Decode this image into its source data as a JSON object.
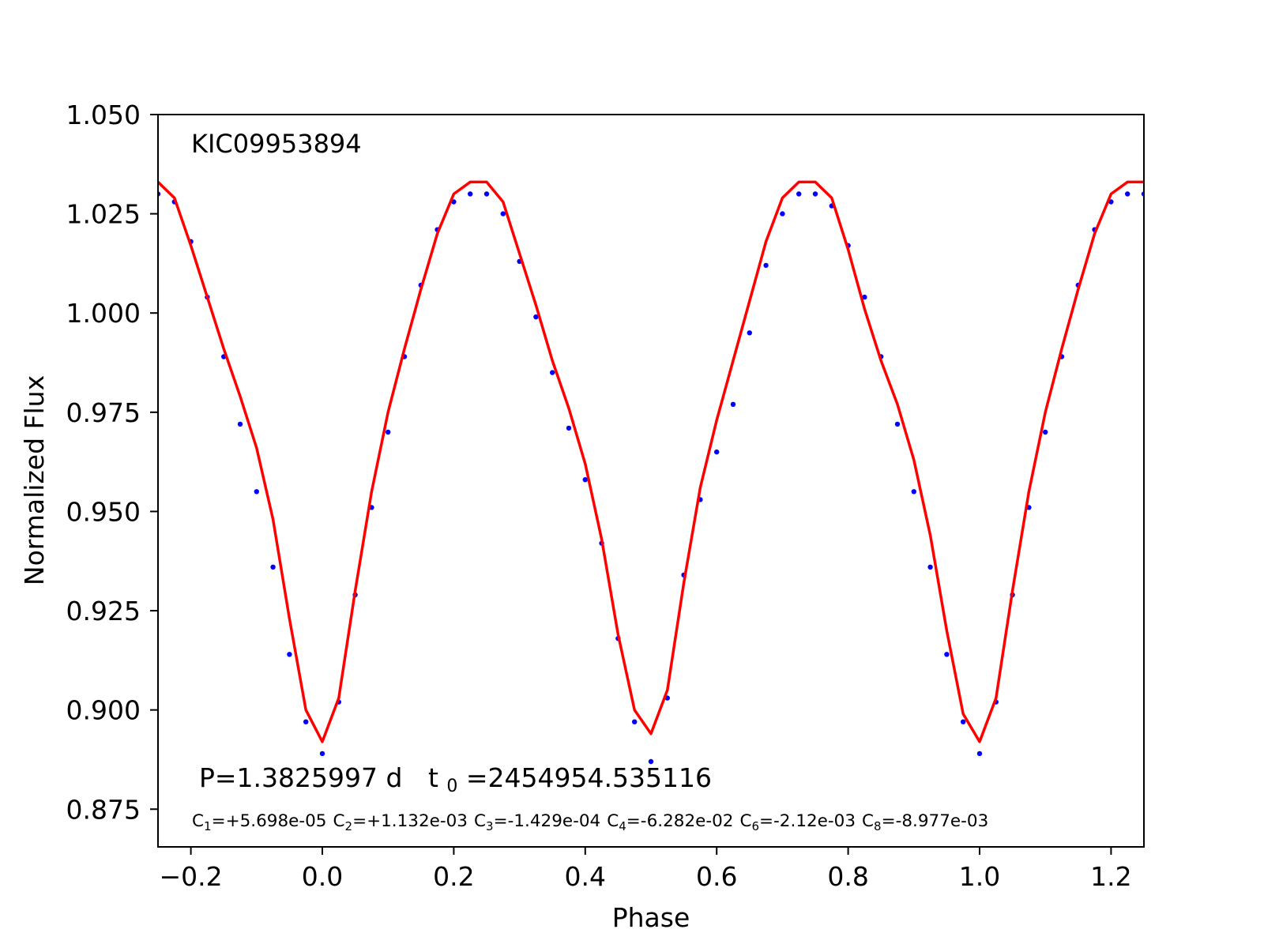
{
  "chart_data": {
    "type": "scatter",
    "object_label": "KIC09953894",
    "xlabel": "Phase",
    "ylabel": "Normalized Flux",
    "xlim": [
      -0.25,
      1.25
    ],
    "ylim": [
      0.8655,
      1.05
    ],
    "x_ticks": [
      -0.2,
      0.0,
      0.2,
      0.4,
      0.6,
      0.8,
      1.0,
      1.2
    ],
    "x_tick_labels": [
      "−0.2",
      "0.0",
      "0.2",
      "0.4",
      "0.6",
      "0.8",
      "1.0",
      "1.2"
    ],
    "y_ticks": [
      0.875,
      0.9,
      0.925,
      0.95,
      0.975,
      1.0,
      1.025,
      1.05
    ],
    "y_tick_labels": [
      "0.875",
      "0.900",
      "0.925",
      "0.950",
      "0.975",
      "1.000",
      "1.025",
      "1.050"
    ],
    "grid": false,
    "annotations": {
      "period_label": "P=1.3825997 d",
      "t0_prefix": "t",
      "t0_sub": "0",
      "t0_value": "=2454954.535116",
      "coefficients": [
        {
          "base": "C",
          "sub": "1",
          "value": "=+5.698e-05"
        },
        {
          "base": "C",
          "sub": "2",
          "value": "=+1.132e-03"
        },
        {
          "base": "C",
          "sub": "3",
          "value": "=-1.429e-04"
        },
        {
          "base": "C",
          "sub": "4",
          "value": "=-6.282e-02"
        },
        {
          "base": "C",
          "sub": "6",
          "value": "=-2.12e-03"
        },
        {
          "base": "C",
          "sub": "8",
          "value": "=-8.977e-03"
        }
      ]
    },
    "series": [
      {
        "kind": "scatter",
        "color": "#0000ff",
        "x": [
          -0.25,
          -0.225,
          -0.2,
          -0.175,
          -0.15,
          -0.125,
          -0.1,
          -0.075,
          -0.05,
          -0.025,
          0.0,
          0.025,
          0.05,
          0.075,
          0.1,
          0.125,
          0.15,
          0.175,
          0.2,
          0.225,
          0.25,
          0.275,
          0.3,
          0.325,
          0.35,
          0.375,
          0.4,
          0.425,
          0.45,
          0.475,
          0.5,
          0.525,
          0.55,
          0.575,
          0.6,
          0.625,
          0.65,
          0.675,
          0.7,
          0.725,
          0.75,
          0.775,
          0.8,
          0.825,
          0.85,
          0.875,
          0.9,
          0.925,
          0.95,
          0.975,
          1.0,
          1.025,
          1.05,
          1.075,
          1.1,
          1.125,
          1.15,
          1.175,
          1.2,
          1.225,
          1.25
        ],
        "y": [
          1.03,
          1.028,
          1.018,
          1.004,
          0.989,
          0.972,
          0.955,
          0.936,
          0.914,
          0.897,
          0.889,
          0.902,
          0.929,
          0.951,
          0.97,
          0.989,
          1.007,
          1.021,
          1.028,
          1.03,
          1.03,
          1.025,
          1.013,
          0.999,
          0.985,
          0.971,
          0.958,
          0.942,
          0.918,
          0.897,
          0.887,
          0.903,
          0.934,
          0.953,
          0.965,
          0.977,
          0.995,
          1.012,
          1.025,
          1.03,
          1.03,
          1.027,
          1.017,
          1.004,
          0.989,
          0.972,
          0.955,
          0.936,
          0.914,
          0.897,
          0.889,
          0.902,
          0.929,
          0.951,
          0.97,
          0.989,
          1.007,
          1.021,
          1.028,
          1.03,
          1.03
        ]
      },
      {
        "kind": "line",
        "color": "#ff0000",
        "x": [
          -0.25,
          -0.225,
          -0.2,
          -0.175,
          -0.15,
          -0.125,
          -0.1,
          -0.075,
          -0.05,
          -0.025,
          0.0,
          0.025,
          0.05,
          0.075,
          0.1,
          0.125,
          0.15,
          0.175,
          0.2,
          0.225,
          0.25,
          0.275,
          0.3,
          0.325,
          0.35,
          0.375,
          0.4,
          0.425,
          0.45,
          0.475,
          0.5,
          0.525,
          0.55,
          0.575,
          0.6,
          0.625,
          0.65,
          0.675,
          0.7,
          0.725,
          0.75,
          0.775,
          0.8,
          0.825,
          0.85,
          0.875,
          0.9,
          0.925,
          0.95,
          0.975,
          1.0,
          1.025,
          1.05,
          1.075,
          1.1,
          1.125,
          1.15,
          1.175,
          1.2,
          1.225,
          1.25
        ],
        "y": [
          1.033,
          1.029,
          1.017,
          1.004,
          0.991,
          0.979,
          0.966,
          0.948,
          0.923,
          0.9,
          0.892,
          0.903,
          0.93,
          0.955,
          0.975,
          0.991,
          1.006,
          1.02,
          1.03,
          1.033,
          1.033,
          1.028,
          1.015,
          1.002,
          0.988,
          0.976,
          0.962,
          0.943,
          0.919,
          0.9,
          0.894,
          0.905,
          0.932,
          0.956,
          0.973,
          0.988,
          1.003,
          1.018,
          1.029,
          1.033,
          1.033,
          1.029,
          1.016,
          1.001,
          0.988,
          0.977,
          0.963,
          0.944,
          0.92,
          0.899,
          0.892,
          0.903,
          0.93,
          0.955,
          0.975,
          0.991,
          1.006,
          1.02,
          1.03,
          1.033,
          1.033
        ]
      }
    ]
  }
}
